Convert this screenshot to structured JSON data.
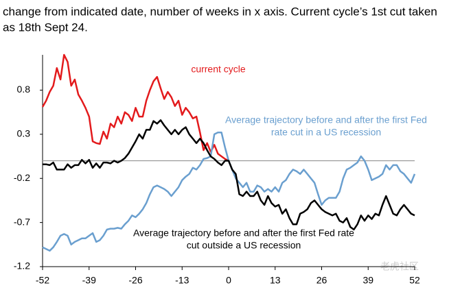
{
  "chart_data": {
    "type": "line",
    "title": [
      "change from indicated date, number of weeks in x axis. Current cycle’s 1st cut taken",
      "as 18th Sept 24."
    ],
    "xlim": [
      -52,
      52
    ],
    "xticks": [
      -52,
      -39,
      -26,
      -13,
      0,
      13,
      26,
      39,
      52
    ],
    "ylim": [
      -1.2,
      1.2
    ],
    "yticks": [
      0.8,
      0.3,
      -0.2,
      -0.7,
      -1.2
    ],
    "reference_line": 0,
    "watermark": "老虎社区",
    "series": [
      {
        "label": [
          "current cycle"
        ],
        "color": "#e31a1c",
        "x": [
          -52,
          -51,
          -50,
          -49,
          -48,
          -47,
          -46,
          -45,
          -44,
          -43,
          -42,
          -41,
          -40,
          -39,
          -38,
          -37,
          -36,
          -35,
          -34,
          -33,
          -32,
          -31,
          -30,
          -29,
          -28,
          -27,
          -26,
          -25,
          -24,
          -23,
          -22,
          -21,
          -20,
          -19,
          -18,
          -17,
          -16,
          -15,
          -14,
          -13,
          -12,
          -11,
          -10,
          -9,
          -8,
          -7,
          -6,
          -5,
          -4,
          -3,
          -2,
          -1,
          0
        ],
        "values": [
          0.61,
          0.68,
          0.78,
          0.85,
          1.05,
          0.92,
          1.2,
          1.12,
          0.85,
          0.92,
          0.75,
          0.68,
          0.6,
          0.5,
          0.22,
          0.2,
          0.19,
          0.33,
          0.25,
          0.42,
          0.38,
          0.5,
          0.42,
          0.55,
          0.52,
          0.45,
          0.6,
          0.5,
          0.5,
          0.68,
          0.8,
          0.9,
          0.95,
          0.82,
          0.7,
          0.78,
          0.72,
          0.62,
          0.68,
          0.52,
          0.6,
          0.55,
          0.48,
          0.5,
          0.32,
          0.12,
          0.2,
          0.1,
          0.18,
          0.08,
          0.05,
          0.02,
          0.0
        ]
      },
      {
        "label": [
          "Average trajectory before and after the first Fed",
          "rate cut in a US recession"
        ],
        "color": "#6a9fcf",
        "x": [
          -52,
          -51,
          -50,
          -49,
          -48,
          -47,
          -46,
          -45,
          -44,
          -43,
          -42,
          -41,
          -40,
          -39,
          -38,
          -37,
          -36,
          -35,
          -34,
          -33,
          -32,
          -31,
          -30,
          -29,
          -28,
          -27,
          -26,
          -25,
          -24,
          -23,
          -22,
          -21,
          -20,
          -19,
          -18,
          -17,
          -16,
          -15,
          -14,
          -13,
          -12,
          -11,
          -10,
          -9,
          -8,
          -7,
          -6,
          -5,
          -4,
          -3,
          -2,
          -1,
          0,
          1,
          2,
          3,
          4,
          5,
          6,
          7,
          8,
          9,
          10,
          11,
          12,
          13,
          14,
          15,
          16,
          17,
          18,
          19,
          20,
          21,
          22,
          23,
          24,
          25,
          26,
          27,
          28,
          29,
          30,
          31,
          32,
          33,
          34,
          35,
          36,
          37,
          38,
          39,
          40,
          41,
          42,
          43,
          44,
          45,
          46,
          47,
          48,
          49,
          50,
          51,
          52
        ],
        "values": [
          -0.98,
          -1.0,
          -1.02,
          -0.98,
          -0.92,
          -0.85,
          -0.83,
          -0.85,
          -0.95,
          -0.92,
          -0.9,
          -0.88,
          -0.88,
          -0.85,
          -0.82,
          -0.92,
          -0.9,
          -0.85,
          -0.78,
          -0.77,
          -0.77,
          -0.76,
          -0.77,
          -0.72,
          -0.68,
          -0.62,
          -0.64,
          -0.6,
          -0.55,
          -0.48,
          -0.38,
          -0.3,
          -0.28,
          -0.3,
          -0.32,
          -0.35,
          -0.4,
          -0.35,
          -0.3,
          -0.22,
          -0.18,
          -0.15,
          -0.08,
          -0.1,
          -0.05,
          0.02,
          0.03,
          0.05,
          0.3,
          0.32,
          0.32,
          0.15,
          0.0,
          -0.1,
          -0.2,
          -0.25,
          -0.3,
          -0.25,
          -0.35,
          -0.35,
          -0.28,
          -0.3,
          -0.35,
          -0.32,
          -0.35,
          -0.3,
          -0.35,
          -0.25,
          -0.22,
          -0.15,
          -0.1,
          -0.12,
          -0.15,
          -0.1,
          -0.15,
          -0.2,
          -0.25,
          -0.38,
          -0.5,
          -0.45,
          -0.42,
          -0.42,
          -0.42,
          -0.35,
          -0.2,
          -0.1,
          -0.08,
          -0.05,
          -0.02,
          0.05,
          0.0,
          -0.1,
          -0.22,
          -0.2,
          -0.18,
          -0.15,
          -0.05,
          -0.1,
          -0.05,
          -0.05,
          -0.12,
          -0.15,
          -0.2,
          -0.25,
          -0.15
        ]
      },
      {
        "label": [
          "Average trajectory before and after the first Fed rate",
          "cut outside a US recession"
        ],
        "color": "#000000",
        "x": [
          -52,
          -51,
          -50,
          -49,
          -48,
          -47,
          -46,
          -45,
          -44,
          -43,
          -42,
          -41,
          -40,
          -39,
          -38,
          -37,
          -36,
          -35,
          -34,
          -33,
          -32,
          -31,
          -30,
          -29,
          -28,
          -27,
          -26,
          -25,
          -24,
          -23,
          -22,
          -21,
          -20,
          -19,
          -18,
          -17,
          -16,
          -15,
          -14,
          -13,
          -12,
          -11,
          -10,
          -9,
          -8,
          -7,
          -6,
          -5,
          -4,
          -3,
          -2,
          -1,
          0,
          1,
          2,
          3,
          4,
          5,
          6,
          7,
          8,
          9,
          10,
          11,
          12,
          13,
          14,
          15,
          16,
          17,
          18,
          19,
          20,
          21,
          22,
          23,
          24,
          25,
          26,
          27,
          28,
          29,
          30,
          31,
          32,
          33,
          34,
          35,
          36,
          37,
          38,
          39,
          40,
          41,
          42,
          43,
          44,
          45,
          46,
          47,
          48,
          49,
          50,
          51,
          52
        ],
        "values": [
          -0.04,
          -0.04,
          -0.05,
          -0.02,
          -0.1,
          -0.1,
          -0.1,
          -0.04,
          -0.08,
          -0.05,
          -0.05,
          0.01,
          -0.03,
          0.01,
          -0.08,
          -0.03,
          -0.08,
          -0.02,
          -0.02,
          -0.03,
          0.0,
          -0.02,
          0.0,
          0.03,
          0.08,
          0.15,
          0.22,
          0.3,
          0.25,
          0.35,
          0.35,
          0.45,
          0.42,
          0.46,
          0.4,
          0.35,
          0.3,
          0.35,
          0.3,
          0.35,
          0.38,
          0.3,
          0.25,
          0.2,
          0.25,
          0.2,
          0.12,
          0.05,
          0.02,
          -0.02,
          -0.05,
          0.0,
          0.0,
          -0.1,
          -0.15,
          -0.38,
          -0.4,
          -0.35,
          -0.4,
          -0.4,
          -0.35,
          -0.45,
          -0.5,
          -0.4,
          -0.48,
          -0.52,
          -0.5,
          -0.6,
          -0.55,
          -0.65,
          -0.72,
          -0.72,
          -0.6,
          -0.58,
          -0.55,
          -0.48,
          -0.45,
          -0.5,
          -0.55,
          -0.58,
          -0.6,
          -0.62,
          -0.6,
          -0.68,
          -0.7,
          -0.65,
          -0.75,
          -0.78,
          -0.72,
          -0.62,
          -0.68,
          -0.62,
          -0.66,
          -0.6,
          -0.62,
          -0.5,
          -0.4,
          -0.5,
          -0.6,
          -0.62,
          -0.55,
          -0.5,
          -0.55,
          -0.6,
          -0.62
        ]
      }
    ]
  }
}
